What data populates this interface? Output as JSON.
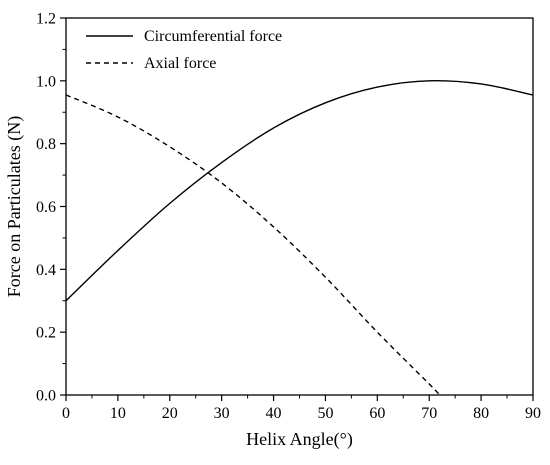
{
  "chart_data": {
    "type": "line",
    "xlabel": "Helix Angle(°)",
    "ylabel": "Force on Particulates (N)",
    "xlim": [
      0,
      90
    ],
    "ylim": [
      0,
      1.2
    ],
    "x_ticks": [
      0,
      10,
      20,
      30,
      40,
      50,
      60,
      70,
      80,
      90
    ],
    "x_tick_labels": [
      "0",
      "10",
      "20",
      "30",
      "40",
      "50",
      "60",
      "70",
      "80",
      "90"
    ],
    "y_ticks": [
      0,
      0.2,
      0.4,
      0.6,
      0.8,
      1.0,
      1.2
    ],
    "y_tick_labels": [
      "0.0",
      "0.2",
      "0.4",
      "0.6",
      "0.8",
      "1.0",
      "1.2"
    ],
    "grid": false,
    "legend_position": "top-left",
    "series": [
      {
        "name": "Circumferential force",
        "style": "solid",
        "color": "#000000",
        "x": [
          0,
          10,
          20,
          30,
          40,
          50,
          60,
          70,
          80,
          90
        ],
        "y": [
          0.3,
          0.46,
          0.61,
          0.74,
          0.85,
          0.93,
          0.98,
          1.0,
          0.99,
          0.955
        ]
      },
      {
        "name": "Axial force",
        "style": "dashed",
        "color": "#000000",
        "x": [
          0,
          10,
          20,
          30,
          40,
          50,
          60,
          70,
          72
        ],
        "y": [
          0.955,
          0.885,
          0.79,
          0.675,
          0.535,
          0.375,
          0.2,
          0.035,
          0.0
        ]
      }
    ]
  }
}
